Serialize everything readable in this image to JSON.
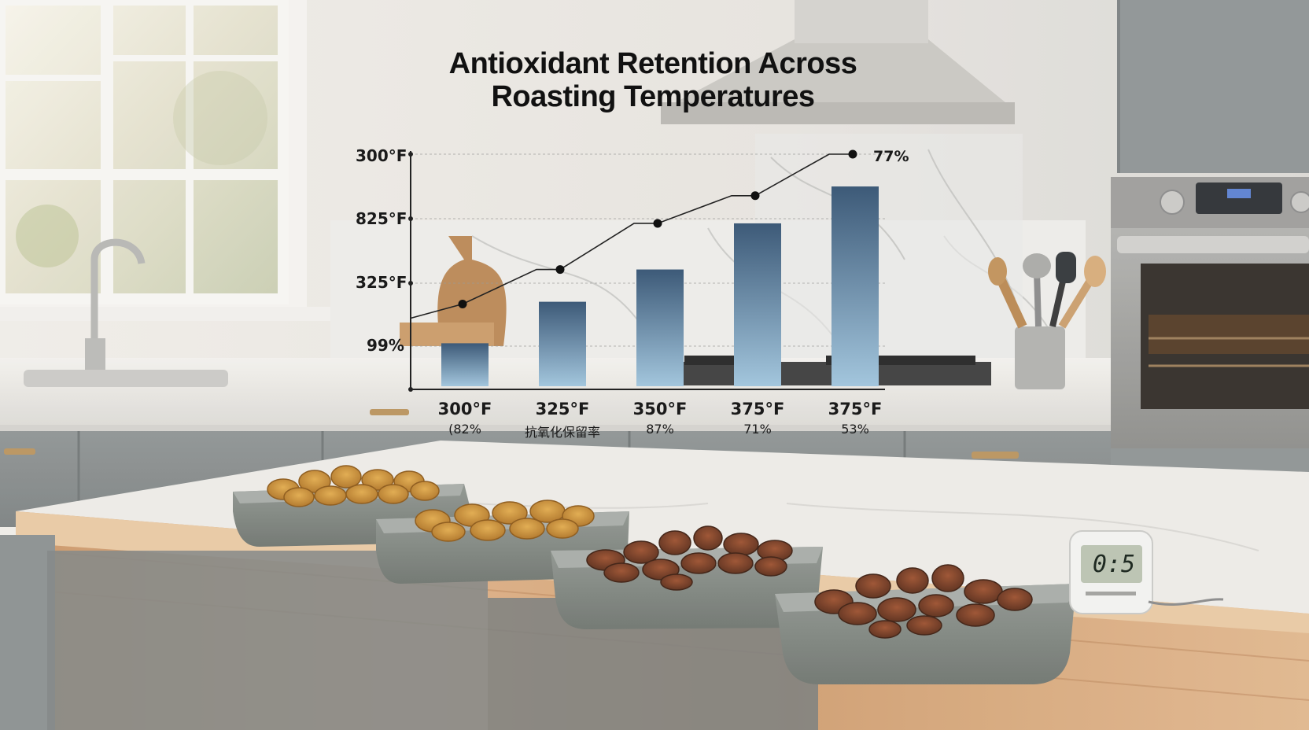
{
  "chart_data": {
    "type": "bar",
    "title_lines": [
      "Antioxidant Retention Across",
      "Roasting Temperatures"
    ],
    "y_tick_labels": [
      "300°F",
      "825°F",
      "325°F",
      "99%"
    ],
    "categories": [
      "300°F",
      "325°F",
      "350°F",
      "375°F",
      "375°F"
    ],
    "category_sublabels": [
      "(82%",
      "抗氧化保留率",
      "87%",
      "71%",
      "53%"
    ],
    "top_annotation": "77%",
    "bar_values": [
      1.0,
      1.9,
      2.6,
      3.6,
      4.4
    ],
    "line_values": [
      1.85,
      2.6,
      3.6,
      4.2,
      5.1
    ],
    "ylim": [
      0,
      5.1
    ],
    "grid": true,
    "colors": {
      "bar_top": "#3d5a78",
      "bar_bottom": "#9cc0d8",
      "line": "#222222"
    }
  },
  "timer": {
    "display": "0:5"
  }
}
